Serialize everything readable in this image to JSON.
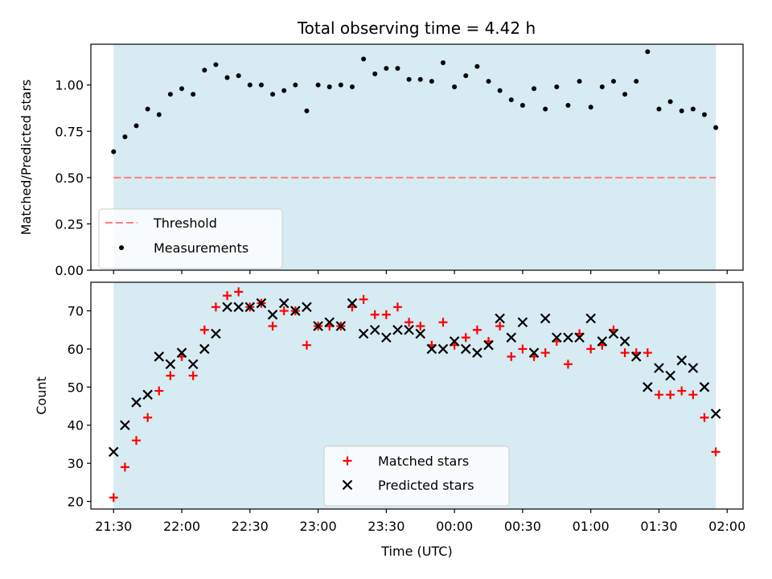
{
  "title": "Total observing time = 4.42 h",
  "colors": {
    "band": "#add8e6",
    "threshold": "#ff7f7f",
    "measurements": "#000000",
    "matched": "#ff0000",
    "predicted": "#000000"
  },
  "chart_data": [
    {
      "type": "scatter",
      "ylabel": "Matched/Predicted stars",
      "xlabel": "",
      "xlim": [
        "21:20",
        "02:07"
      ],
      "ylim": [
        0,
        1.22
      ],
      "yticks": [
        0.0,
        0.25,
        0.5,
        0.75,
        1.0
      ],
      "ytick_labels": [
        "0.00",
        "0.25",
        "0.50",
        "0.75",
        "1.00"
      ],
      "xtick_labels_shown": false,
      "observing_window": [
        "21:30",
        "01:55"
      ],
      "legend": {
        "placement": "lower-left",
        "entries": [
          "Threshold",
          "Measurements"
        ]
      },
      "threshold": {
        "name": "Threshold",
        "value": 0.5,
        "style": "dashed"
      },
      "series": [
        {
          "name": "Measurements",
          "marker": "dot",
          "x": [
            "21:30",
            "21:35",
            "21:40",
            "21:45",
            "21:50",
            "21:55",
            "22:00",
            "22:05",
            "22:10",
            "22:15",
            "22:20",
            "22:25",
            "22:30",
            "22:35",
            "22:40",
            "22:45",
            "22:50",
            "22:55",
            "23:00",
            "23:05",
            "23:10",
            "23:15",
            "23:20",
            "23:25",
            "23:30",
            "23:35",
            "23:40",
            "23:45",
            "23:50",
            "23:55",
            "00:00",
            "00:05",
            "00:10",
            "00:15",
            "00:20",
            "00:25",
            "00:30",
            "00:35",
            "00:40",
            "00:45",
            "00:50",
            "00:55",
            "01:00",
            "01:05",
            "01:10",
            "01:15",
            "01:20",
            "01:25",
            "01:30",
            "01:35",
            "01:40",
            "01:45",
            "01:50",
            "01:55"
          ],
          "values": [
            0.64,
            0.72,
            0.78,
            0.87,
            0.84,
            0.95,
            0.98,
            0.95,
            1.08,
            1.11,
            1.04,
            1.05,
            1.0,
            1.0,
            0.95,
            0.97,
            1.0,
            0.86,
            1.0,
            0.99,
            1.0,
            0.99,
            1.14,
            1.06,
            1.09,
            1.09,
            1.03,
            1.03,
            1.02,
            1.12,
            0.99,
            1.05,
            1.1,
            1.02,
            0.97,
            0.92,
            0.89,
            0.98,
            0.87,
            0.99,
            0.89,
            1.02,
            0.88,
            0.99,
            1.02,
            0.95,
            1.02,
            1.18,
            0.87,
            0.91,
            0.86,
            0.87,
            0.84,
            0.77
          ]
        }
      ]
    },
    {
      "type": "scatter",
      "ylabel": "Count",
      "xlabel": "Time (UTC)",
      "xlim": [
        "21:20",
        "02:07"
      ],
      "ylim": [
        18,
        77.5
      ],
      "yticks": [
        20,
        30,
        40,
        50,
        60,
        70
      ],
      "xticks": [
        "21:30",
        "22:00",
        "22:30",
        "23:00",
        "23:30",
        "00:00",
        "00:30",
        "01:00",
        "01:30",
        "02:00"
      ],
      "observing_window": [
        "21:30",
        "01:55"
      ],
      "legend": {
        "placement": "lower-center",
        "entries": [
          "Matched stars",
          "Predicted stars"
        ]
      },
      "series": [
        {
          "name": "Matched stars",
          "marker": "plus",
          "x": [
            "21:30",
            "21:35",
            "21:40",
            "21:45",
            "21:50",
            "21:55",
            "22:00",
            "22:05",
            "22:10",
            "22:15",
            "22:20",
            "22:25",
            "22:30",
            "22:35",
            "22:40",
            "22:45",
            "22:50",
            "22:55",
            "23:00",
            "23:05",
            "23:10",
            "23:15",
            "23:20",
            "23:25",
            "23:30",
            "23:35",
            "23:40",
            "23:45",
            "23:50",
            "23:55",
            "00:00",
            "00:05",
            "00:10",
            "00:15",
            "00:20",
            "00:25",
            "00:30",
            "00:35",
            "00:40",
            "00:45",
            "00:50",
            "00:55",
            "01:00",
            "01:05",
            "01:10",
            "01:15",
            "01:20",
            "01:25",
            "01:30",
            "01:35",
            "01:40",
            "01:45",
            "01:50",
            "01:55"
          ],
          "values": [
            21,
            29,
            36,
            42,
            49,
            53,
            58,
            53,
            65,
            71,
            74,
            75,
            71,
            72,
            66,
            70,
            70,
            61,
            66,
            66,
            66,
            71,
            73,
            69,
            69,
            71,
            67,
            66,
            61,
            67,
            61,
            63,
            65,
            62,
            66,
            58,
            60,
            58,
            59,
            62,
            56,
            64,
            60,
            61,
            65,
            59,
            59,
            59,
            48,
            48,
            49,
            48,
            42,
            33
          ]
        },
        {
          "name": "Predicted stars",
          "marker": "x",
          "x": [
            "21:30",
            "21:35",
            "21:40",
            "21:45",
            "21:50",
            "21:55",
            "22:00",
            "22:05",
            "22:10",
            "22:15",
            "22:20",
            "22:25",
            "22:30",
            "22:35",
            "22:40",
            "22:45",
            "22:50",
            "22:55",
            "23:00",
            "23:05",
            "23:10",
            "23:15",
            "23:20",
            "23:25",
            "23:30",
            "23:35",
            "23:40",
            "23:45",
            "23:50",
            "23:55",
            "00:00",
            "00:05",
            "00:10",
            "00:15",
            "00:20",
            "00:25",
            "00:30",
            "00:35",
            "00:40",
            "00:45",
            "00:50",
            "00:55",
            "01:00",
            "01:05",
            "01:10",
            "01:15",
            "01:20",
            "01:25",
            "01:30",
            "01:35",
            "01:40",
            "01:45",
            "01:50",
            "01:55"
          ],
          "values": [
            33,
            40,
            46,
            48,
            58,
            56,
            59,
            56,
            60,
            64,
            71,
            71,
            71,
            72,
            69,
            72,
            70,
            71,
            66,
            67,
            66,
            72,
            64,
            65,
            63,
            65,
            65,
            64,
            60,
            60,
            62,
            60,
            59,
            61,
            68,
            63,
            67,
            59,
            68,
            63,
            63,
            63,
            68,
            62,
            64,
            62,
            58,
            50,
            55,
            53,
            57,
            55,
            50,
            43
          ]
        }
      ]
    }
  ]
}
